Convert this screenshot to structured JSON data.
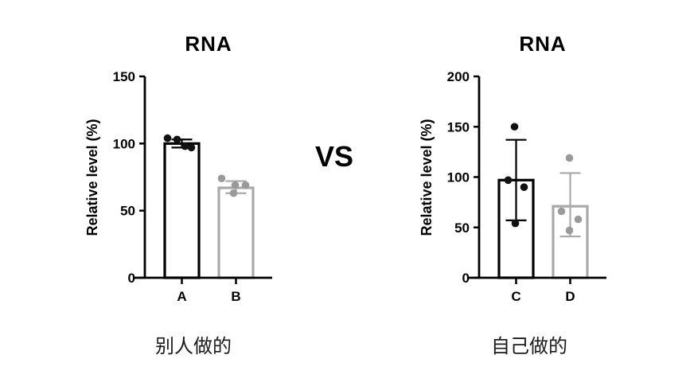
{
  "vs_label": "VS",
  "chart_data": [
    {
      "type": "bar",
      "title": "RNA",
      "ylabel": "Relative level (%)",
      "caption": "别人做的",
      "ymax": 150,
      "yticks": [
        0,
        50,
        100,
        150
      ],
      "categories": [
        "A",
        "B"
      ],
      "bars": [
        {
          "label": "A",
          "value": 100,
          "color": "#000000",
          "dot_color": "#111111",
          "err_lo": 97,
          "err_hi": 103,
          "points": [
            {
              "v": 104,
              "dx": -18
            },
            {
              "v": 103,
              "dx": -6
            },
            {
              "v": 98,
              "dx": 4
            },
            {
              "v": 97,
              "dx": 12
            }
          ]
        },
        {
          "label": "B",
          "value": 67,
          "color": "#a9a9a9",
          "dot_color": "#9a9a9a",
          "err_lo": 63,
          "err_hi": 72,
          "points": [
            {
              "v": 74,
              "dx": -18
            },
            {
              "v": 69,
              "dx": -1
            },
            {
              "v": 69,
              "dx": 12
            },
            {
              "v": 63,
              "dx": -3
            }
          ]
        }
      ]
    },
    {
      "type": "bar",
      "title": "RNA",
      "ylabel": "Relative level (%)",
      "caption": "自己做的",
      "ymax": 200,
      "yticks": [
        0,
        50,
        100,
        150,
        200
      ],
      "categories": [
        "C",
        "D"
      ],
      "bars": [
        {
          "label": "C",
          "value": 97,
          "color": "#000000",
          "dot_color": "#111111",
          "err_lo": 57,
          "err_hi": 137,
          "points": [
            {
              "v": 150,
              "dx": -2
            },
            {
              "v": 97,
              "dx": -10
            },
            {
              "v": 90,
              "dx": 10
            },
            {
              "v": 54,
              "dx": -1
            }
          ]
        },
        {
          "label": "D",
          "value": 71,
          "color": "#a9a9a9",
          "dot_color": "#9a9a9a",
          "err_lo": 41,
          "err_hi": 104,
          "points": [
            {
              "v": 119,
              "dx": -1
            },
            {
              "v": 66,
              "dx": -11
            },
            {
              "v": 58,
              "dx": 10
            },
            {
              "v": 47,
              "dx": -1
            }
          ]
        }
      ]
    }
  ]
}
